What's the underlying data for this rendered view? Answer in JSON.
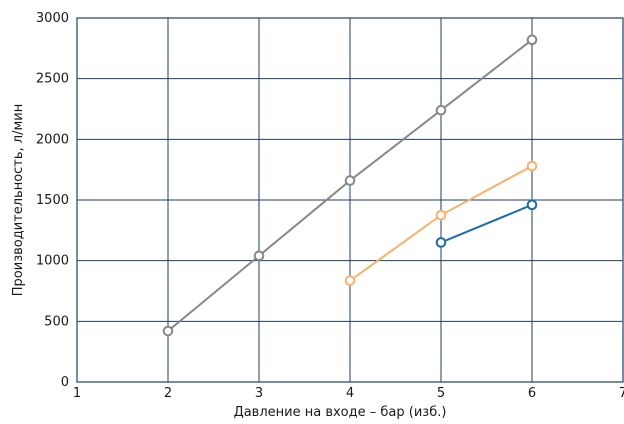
{
  "chart_data": {
    "type": "line",
    "title": "",
    "xlabel": "Давление на входе – бар (изб.)",
    "ylabel": "Производительность, л/мин",
    "xlim": [
      1,
      7
    ],
    "ylim": [
      0,
      3000
    ],
    "x_ticks": [
      1,
      2,
      3,
      4,
      5,
      6,
      7
    ],
    "y_ticks": [
      0,
      500,
      1000,
      1500,
      2000,
      2500,
      3000
    ],
    "grid": true,
    "series": [
      {
        "color": "#888888",
        "x": [
          2,
          3,
          4,
          5,
          6
        ],
        "y": [
          420,
          1040,
          1660,
          2240,
          2820
        ]
      },
      {
        "color": "#f5b26b",
        "x": [
          4,
          5,
          6
        ],
        "y": [
          835,
          1375,
          1780
        ]
      },
      {
        "color": "#1a6fa8",
        "x": [
          5,
          6
        ],
        "y": [
          1150,
          1460
        ]
      }
    ]
  }
}
